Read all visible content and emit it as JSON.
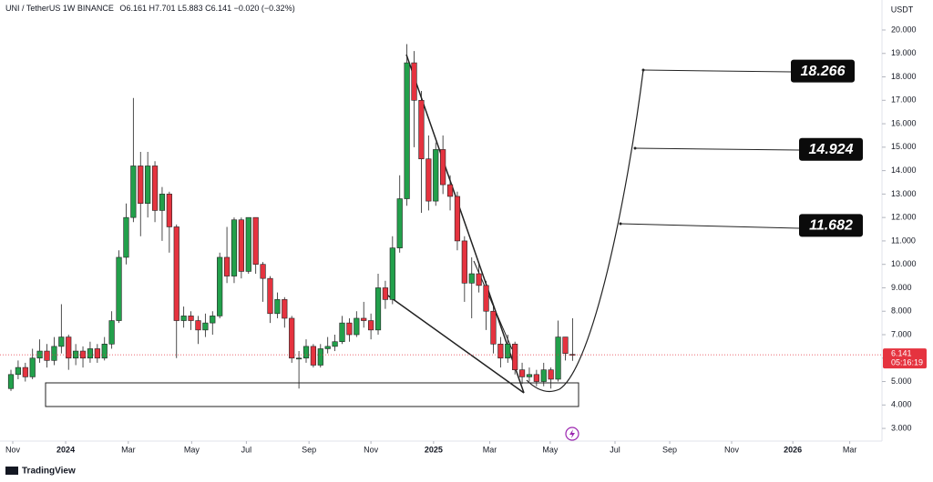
{
  "chart_data": {
    "type": "candlestick",
    "symbol": "UNI / TetherUS",
    "interval": "1W",
    "exchange": "BINANCE",
    "ohlc_labels": [
      "O",
      "H",
      "L",
      "C"
    ],
    "change": "−0.020 (−0.32%)",
    "currency": "USDT",
    "countdown": "05:16:19",
    "brand": "TradingView",
    "open": [
      4.7,
      5.3,
      5.6,
      5.2,
      6.0,
      6.3,
      5.9,
      6.5,
      6.9,
      6.0,
      6.3,
      6.0,
      6.4,
      6.0,
      6.6,
      7.6,
      10.3,
      12.0,
      14.2,
      12.6,
      14.2,
      12.3,
      13.0,
      11.6,
      7.6,
      7.8,
      7.6,
      7.2,
      7.5,
      7.8,
      10.3,
      9.5,
      11.9,
      9.7,
      12.0,
      10.0,
      9.4,
      7.9,
      8.5,
      7.7,
      6.0,
      6.0,
      6.5,
      5.7,
      6.4,
      6.5,
      6.7,
      7.5,
      7.0,
      7.7,
      7.6,
      7.2,
      9.0,
      8.5,
      10.7,
      12.8,
      18.6,
      17.0,
      14.5,
      12.7,
      14.9,
      13.4,
      12.9,
      11.0,
      9.2,
      9.6,
      9.1,
      8.0,
      6.6,
      6.0,
      6.6,
      5.5,
      5.2,
      5.3,
      5.0,
      5.5,
      5.1,
      6.9,
      6.161
    ],
    "high": [
      5.5,
      5.9,
      5.8,
      6.4,
      6.8,
      6.6,
      6.9,
      8.3,
      7.0,
      6.6,
      6.5,
      6.7,
      6.6,
      6.9,
      8.0,
      10.6,
      12.6,
      17.1,
      14.8,
      14.8,
      14.4,
      13.3,
      13.1,
      11.7,
      8.2,
      8.0,
      7.8,
      7.9,
      8.0,
      10.5,
      11.6,
      12.0,
      12.0,
      12.0,
      12.0,
      10.1,
      9.5,
      8.8,
      8.6,
      7.8,
      6.3,
      6.8,
      6.6,
      6.6,
      6.9,
      7.0,
      7.8,
      7.7,
      8.0,
      8.4,
      7.9,
      9.6,
      9.3,
      11.2,
      13.8,
      19.4,
      19.1,
      17.4,
      15.5,
      15.2,
      15.5,
      13.8,
      13.1,
      11.2,
      10.3,
      10.1,
      9.3,
      8.2,
      6.9,
      7.0,
      6.7,
      5.8,
      5.6,
      5.5,
      5.8,
      5.6,
      7.6,
      6.9,
      7.701
    ],
    "low": [
      4.6,
      5.1,
      5.0,
      5.1,
      5.8,
      5.6,
      5.7,
      6.2,
      5.5,
      5.7,
      5.6,
      5.8,
      5.8,
      5.9,
      6.4,
      7.5,
      10.0,
      11.8,
      11.2,
      12.0,
      11.8,
      11.0,
      10.5,
      6.0,
      7.3,
      7.2,
      6.6,
      6.9,
      7.0,
      7.7,
      9.2,
      9.2,
      9.4,
      9.6,
      9.6,
      8.4,
      7.5,
      7.7,
      7.3,
      5.8,
      4.7,
      5.8,
      5.6,
      5.6,
      6.2,
      6.3,
      6.6,
      6.7,
      6.9,
      7.3,
      6.8,
      7.0,
      8.1,
      8.3,
      10.5,
      12.5,
      15.0,
      12.2,
      12.3,
      12.5,
      13.0,
      12.3,
      10.6,
      8.4,
      7.7,
      8.8,
      7.2,
      6.2,
      5.6,
      5.8,
      5.3,
      4.9,
      5.0,
      4.8,
      4.8,
      4.7,
      5.0,
      5.9,
      5.883
    ],
    "close": [
      5.3,
      5.6,
      5.2,
      6.0,
      6.3,
      5.9,
      6.5,
      6.9,
      6.0,
      6.3,
      6.0,
      6.4,
      6.0,
      6.6,
      7.6,
      10.3,
      12.0,
      14.2,
      12.6,
      14.2,
      12.3,
      13.0,
      11.6,
      7.6,
      7.8,
      7.6,
      7.2,
      7.5,
      7.8,
      10.3,
      9.5,
      11.9,
      9.7,
      12.0,
      10.0,
      9.4,
      7.9,
      8.5,
      7.7,
      6.0,
      6.0,
      6.5,
      5.7,
      6.4,
      6.5,
      6.7,
      7.5,
      7.0,
      7.7,
      7.6,
      7.2,
      9.0,
      8.5,
      10.7,
      12.8,
      18.6,
      17.0,
      14.5,
      12.7,
      14.9,
      13.4,
      12.9,
      11.0,
      9.2,
      9.6,
      9.1,
      8.0,
      6.6,
      6.0,
      6.6,
      5.5,
      5.2,
      5.3,
      5.0,
      5.5,
      5.1,
      6.9,
      6.2,
      6.141
    ],
    "up_color": "#22a04b",
    "down_color": "#e5333f",
    "border_color": "#222222",
    "xlim": [
      -1.52,
      120.6
    ],
    "xticks": [
      {
        "value": 0.25,
        "label": "Nov"
      },
      {
        "value": 7.6,
        "label": "2024"
      },
      {
        "value": 16.3,
        "label": "Mar"
      },
      {
        "value": 25.1,
        "label": "May"
      },
      {
        "value": 32.7,
        "label": "Jul"
      },
      {
        "value": 41.4,
        "label": "Sep"
      },
      {
        "value": 50,
        "label": "Nov"
      },
      {
        "value": 58.7,
        "label": "2025"
      },
      {
        "value": 66.5,
        "label": "Mar"
      },
      {
        "value": 74.9,
        "label": "May"
      },
      {
        "value": 83.9,
        "label": "Jul"
      },
      {
        "value": 91.5,
        "label": "Sep"
      },
      {
        "value": 100.1,
        "label": "Nov"
      },
      {
        "value": 108.6,
        "label": "2026"
      },
      {
        "value": 116.5,
        "label": "Mar"
      }
    ],
    "ylim": [
      2.46,
      21.28
    ],
    "yticks": [
      {
        "value": 3,
        "label": "3.000"
      },
      {
        "value": 4,
        "label": "4.000"
      },
      {
        "value": 5,
        "label": "5.000"
      },
      {
        "value": 6,
        "label": "6.000"
      },
      {
        "value": 7,
        "label": "7.000"
      },
      {
        "value": 8,
        "label": "8.000"
      },
      {
        "value": 9,
        "label": "9.000"
      },
      {
        "value": 10,
        "label": "10.000"
      },
      {
        "value": 11,
        "label": "11.000"
      },
      {
        "value": 12,
        "label": "12.000"
      },
      {
        "value": 13,
        "label": "13.000"
      },
      {
        "value": 14,
        "label": "14.000"
      },
      {
        "value": 15,
        "label": "15.000"
      },
      {
        "value": 16,
        "label": "16.000"
      },
      {
        "value": 17,
        "label": "17.000"
      },
      {
        "value": 18,
        "label": "18.000"
      },
      {
        "value": 19,
        "label": "19.000"
      },
      {
        "value": 20,
        "label": "20.000"
      }
    ],
    "targets": [
      18.266,
      14.924,
      11.682
    ]
  }
}
